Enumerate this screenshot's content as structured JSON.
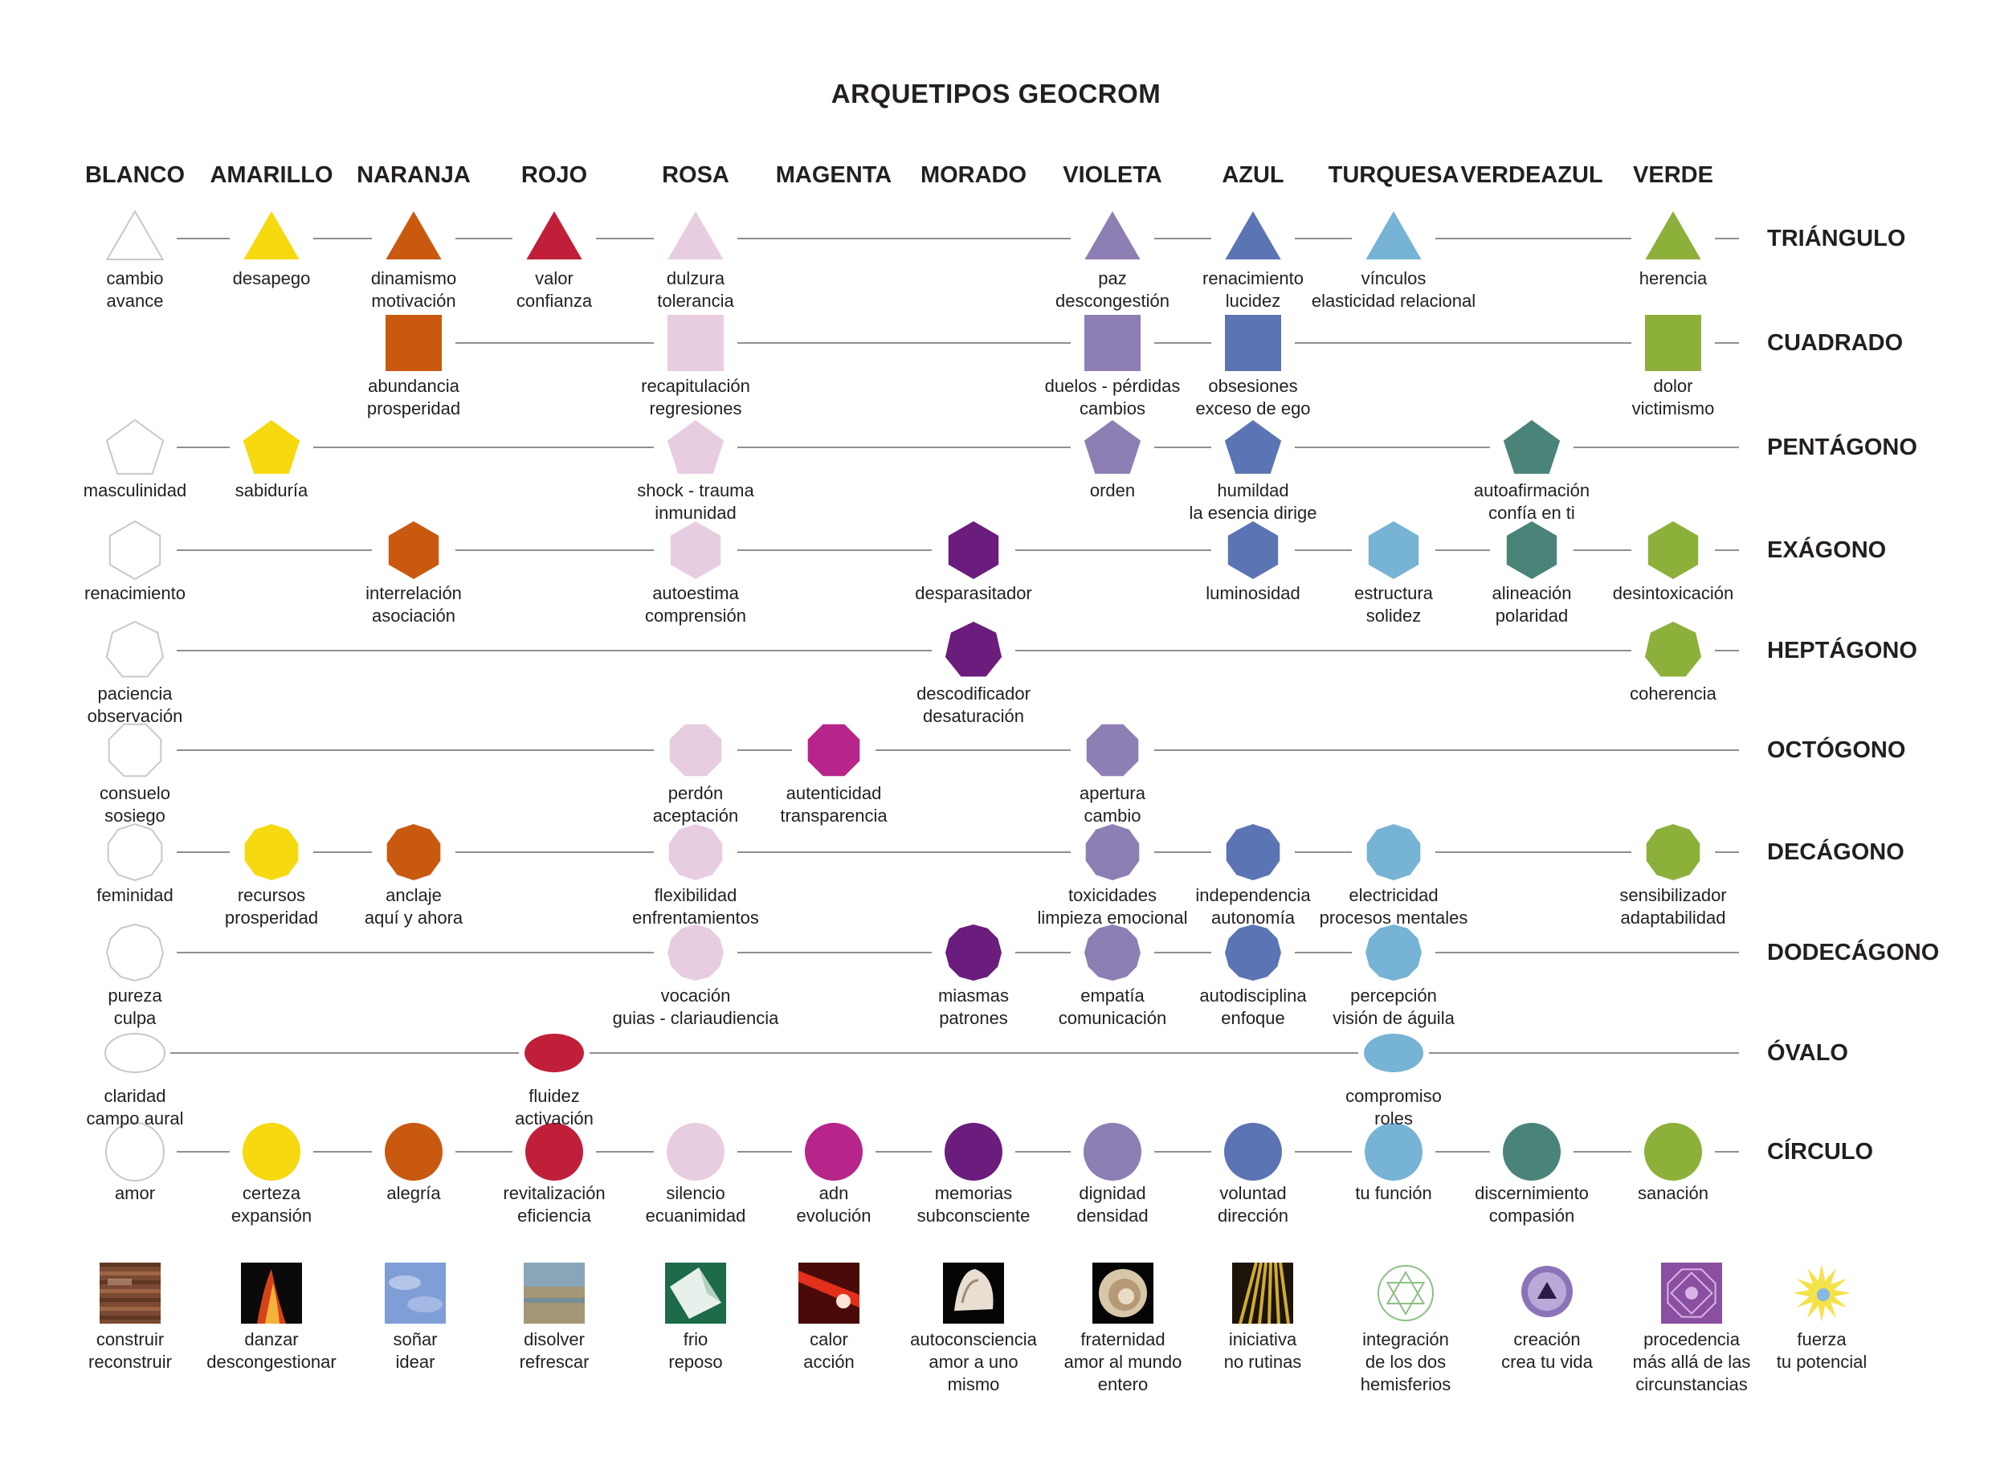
{
  "title": "ARQUETIPOS GEOCROM",
  "colors": {
    "blanco": "#ffffff",
    "amarillo": "#f6d90f",
    "naranja": "#c9590f",
    "rojo": "#c01f3a",
    "rosa": "#e8cde1",
    "magenta": "#b8258a",
    "morado": "#6a1d7c",
    "violeta": "#8d7fb3",
    "azul": "#5b74b3",
    "turquesa": "#77b3d4",
    "verdeazul": "#4a8478",
    "verde": "#8db03a",
    "line": "#8f8f8f",
    "outline": "#c8c8c8"
  },
  "columns": [
    "BLANCO",
    "AMARILLO",
    "NARANJA",
    "ROJO",
    "ROSA",
    "MAGENTA",
    "MORADO",
    "VIOLETA",
    "AZUL",
    "TURQUESA",
    "VERDEAZUL",
    "VERDE"
  ],
  "rows": [
    {
      "name": "TRIÁNGULO",
      "shape": "triangle",
      "nodes": [
        {
          "col": 0,
          "color": "blanco",
          "label": [
            "cambio",
            "avance"
          ]
        },
        {
          "col": 1,
          "color": "amarillo",
          "label": [
            "desapego"
          ]
        },
        {
          "col": 2,
          "color": "naranja",
          "label": [
            "dinamismo",
            "motivación"
          ]
        },
        {
          "col": 3,
          "color": "rojo",
          "label": [
            "valor",
            "confianza"
          ]
        },
        {
          "col": 4,
          "color": "rosa",
          "label": [
            "dulzura",
            "tolerancia"
          ]
        },
        {
          "col": 7,
          "color": "violeta",
          "label": [
            "paz",
            "descongestión"
          ]
        },
        {
          "col": 8,
          "color": "azul",
          "label": [
            "renacimiento",
            "lucidez"
          ]
        },
        {
          "col": 9,
          "color": "turquesa",
          "label": [
            "vínculos",
            "elasticidad relacional"
          ]
        },
        {
          "col": 11,
          "color": "verde",
          "label": [
            "herencia"
          ]
        }
      ]
    },
    {
      "name": "CUADRADO",
      "shape": "square",
      "nodes": [
        {
          "col": 2,
          "color": "naranja",
          "label": [
            "abundancia",
            "prosperidad"
          ]
        },
        {
          "col": 4,
          "color": "rosa",
          "label": [
            "recapitulación",
            "regresiones"
          ]
        },
        {
          "col": 7,
          "color": "violeta",
          "label": [
            "duelos -  pérdidas",
            "cambios"
          ]
        },
        {
          "col": 8,
          "color": "azul",
          "label": [
            "obsesiones",
            "exceso de ego"
          ]
        },
        {
          "col": 11,
          "color": "verde",
          "label": [
            "dolor",
            "victimismo"
          ]
        }
      ]
    },
    {
      "name": "PENTÁGONO",
      "shape": "pentagon",
      "nodes": [
        {
          "col": 0,
          "color": "blanco",
          "label": [
            "masculinidad"
          ]
        },
        {
          "col": 1,
          "color": "amarillo",
          "label": [
            "sabiduría"
          ]
        },
        {
          "col": 4,
          "color": "rosa",
          "label": [
            "shock - trauma",
            "inmunidad"
          ]
        },
        {
          "col": 7,
          "color": "violeta",
          "label": [
            "orden"
          ]
        },
        {
          "col": 8,
          "color": "azul",
          "label": [
            "humildad",
            "la esencia dirige"
          ]
        },
        {
          "col": 10,
          "color": "verdeazul",
          "label": [
            "autoafirmación",
            "confía en ti"
          ]
        }
      ]
    },
    {
      "name": "EXÁGONO",
      "shape": "hexagon",
      "nodes": [
        {
          "col": 0,
          "color": "blanco",
          "label": [
            "renacimiento"
          ]
        },
        {
          "col": 2,
          "color": "naranja",
          "label": [
            "interrelación",
            "asociación"
          ]
        },
        {
          "col": 4,
          "color": "rosa",
          "label": [
            "autoestima",
            "comprensión"
          ]
        },
        {
          "col": 6,
          "color": "morado",
          "label": [
            "desparasitador"
          ]
        },
        {
          "col": 8,
          "color": "azul",
          "label": [
            "luminosidad"
          ]
        },
        {
          "col": 9,
          "color": "turquesa",
          "label": [
            "estructura",
            "solidez"
          ]
        },
        {
          "col": 10,
          "color": "verdeazul",
          "label": [
            "alineación",
            "polaridad"
          ]
        },
        {
          "col": 11,
          "color": "verde",
          "label": [
            "desintoxicación"
          ]
        }
      ]
    },
    {
      "name": "HEPTÁGONO",
      "shape": "heptagon",
      "nodes": [
        {
          "col": 0,
          "color": "blanco",
          "label": [
            "paciencia",
            "observación"
          ]
        },
        {
          "col": 6,
          "color": "morado",
          "label": [
            "descodificador",
            "desaturación"
          ]
        },
        {
          "col": 11,
          "color": "verde",
          "label": [
            "coherencia"
          ]
        }
      ]
    },
    {
      "name": "OCTÓGONO",
      "shape": "octagon",
      "nodes": [
        {
          "col": 0,
          "color": "blanco",
          "label": [
            "consuelo",
            "sosiego"
          ]
        },
        {
          "col": 4,
          "color": "rosa",
          "label": [
            "perdón",
            "aceptación"
          ]
        },
        {
          "col": 5,
          "color": "magenta",
          "label": [
            "autenticidad",
            "transparencia"
          ]
        },
        {
          "col": 7,
          "color": "violeta",
          "label": [
            "apertura",
            "cambio"
          ]
        }
      ]
    },
    {
      "name": "DECÁGONO",
      "shape": "decagon",
      "nodes": [
        {
          "col": 0,
          "color": "blanco",
          "label": [
            "feminidad"
          ]
        },
        {
          "col": 1,
          "color": "amarillo",
          "label": [
            "recursos",
            "prosperidad"
          ]
        },
        {
          "col": 2,
          "color": "naranja",
          "label": [
            "anclaje",
            "aquí y ahora"
          ]
        },
        {
          "col": 4,
          "color": "rosa",
          "label": [
            "flexibilidad",
            "enfrentamientos"
          ]
        },
        {
          "col": 7,
          "color": "violeta",
          "label": [
            "toxicidades",
            "limpieza emocional"
          ]
        },
        {
          "col": 8,
          "color": "azul",
          "label": [
            "independencia",
            "autonomía"
          ]
        },
        {
          "col": 9,
          "color": "turquesa",
          "label": [
            "electricidad",
            "procesos mentales"
          ]
        },
        {
          "col": 11,
          "color": "verde",
          "label": [
            "sensibilizador",
            "adaptabilidad"
          ]
        }
      ]
    },
    {
      "name": "DODECÁGONO",
      "shape": "dodecagon",
      "nodes": [
        {
          "col": 0,
          "color": "blanco",
          "label": [
            "pureza",
            "culpa"
          ]
        },
        {
          "col": 4,
          "color": "rosa",
          "label": [
            "vocación",
            "guias - clariaudiencia"
          ]
        },
        {
          "col": 6,
          "color": "morado",
          "label": [
            "miasmas",
            "patrones"
          ]
        },
        {
          "col": 7,
          "color": "violeta",
          "label": [
            "empatía",
            "comunicación"
          ]
        },
        {
          "col": 8,
          "color": "azul",
          "label": [
            "autodisciplina",
            "enfoque"
          ]
        },
        {
          "col": 9,
          "color": "turquesa",
          "label": [
            "percepción",
            "visión de águila"
          ]
        }
      ]
    },
    {
      "name": "ÓVALO",
      "shape": "oval",
      "nodes": [
        {
          "col": 0,
          "color": "blanco",
          "label": [
            "claridad",
            "campo aural"
          ]
        },
        {
          "col": 3,
          "color": "rojo",
          "label": [
            "fluidez",
            "activación"
          ]
        },
        {
          "col": 9,
          "color": "turquesa",
          "label": [
            "compromiso",
            "roles"
          ]
        }
      ]
    },
    {
      "name": "CÍRCULO",
      "shape": "circle",
      "nodes": [
        {
          "col": 0,
          "color": "blanco",
          "label": [
            "amor"
          ]
        },
        {
          "col": 1,
          "color": "amarillo",
          "label": [
            "certeza",
            "expansión"
          ]
        },
        {
          "col": 2,
          "color": "naranja",
          "label": [
            "alegría"
          ]
        },
        {
          "col": 3,
          "color": "rojo",
          "label": [
            "revitalización",
            "eficiencia"
          ]
        },
        {
          "col": 4,
          "color": "rosa",
          "label": [
            "silencio",
            "ecuanimidad"
          ]
        },
        {
          "col": 5,
          "color": "magenta",
          "label": [
            "adn",
            "evolución"
          ]
        },
        {
          "col": 6,
          "color": "morado",
          "label": [
            "memorias",
            "subconsciente"
          ]
        },
        {
          "col": 7,
          "color": "violeta",
          "label": [
            "dignidad",
            "densidad"
          ]
        },
        {
          "col": 8,
          "color": "azul",
          "label": [
            "voluntad",
            "dirección"
          ]
        },
        {
          "col": 9,
          "color": "turquesa",
          "label": [
            "tu función"
          ]
        },
        {
          "col": 10,
          "color": "verdeazul",
          "label": [
            "discernimiento",
            "compasión"
          ]
        },
        {
          "col": 11,
          "color": "verde",
          "label": [
            "sanación"
          ]
        }
      ]
    }
  ],
  "bottom": [
    {
      "icon": "bark-texture-icon",
      "label": [
        "construir",
        "reconstruir"
      ]
    },
    {
      "icon": "flame-texture-icon",
      "label": [
        "danzar",
        "descongestionar"
      ]
    },
    {
      "icon": "sky-texture-icon",
      "label": [
        "soñar",
        "idear"
      ]
    },
    {
      "icon": "water-texture-icon",
      "label": [
        "disolver",
        "refrescar"
      ]
    },
    {
      "icon": "folded-paper-texture-icon",
      "label": [
        "frio",
        "reposo"
      ]
    },
    {
      "icon": "light-beam-texture-icon",
      "label": [
        "calor",
        "acción"
      ]
    },
    {
      "icon": "seashell-texture-icon",
      "label": [
        "autoconsciencia",
        "amor a uno",
        "mismo"
      ]
    },
    {
      "icon": "snail-shell-texture-icon",
      "label": [
        "fraternidad",
        "amor al mundo",
        "entero"
      ]
    },
    {
      "icon": "golden-rays-texture-icon",
      "label": [
        "iniciativa",
        "no rutinas"
      ]
    },
    {
      "icon": "sri-yantra-icon",
      "label": [
        "integración",
        "de los dos",
        "hemisferios"
      ]
    },
    {
      "icon": "violet-mandala-icon",
      "label": [
        "creación",
        "crea tu vida"
      ]
    },
    {
      "icon": "purple-geometric-mandala-icon",
      "label": [
        "procedencia",
        "más allá de las",
        "circunstancias"
      ]
    },
    {
      "icon": "star-burst-icon",
      "label": [
        "fuerza",
        "tu potencial"
      ]
    }
  ]
}
